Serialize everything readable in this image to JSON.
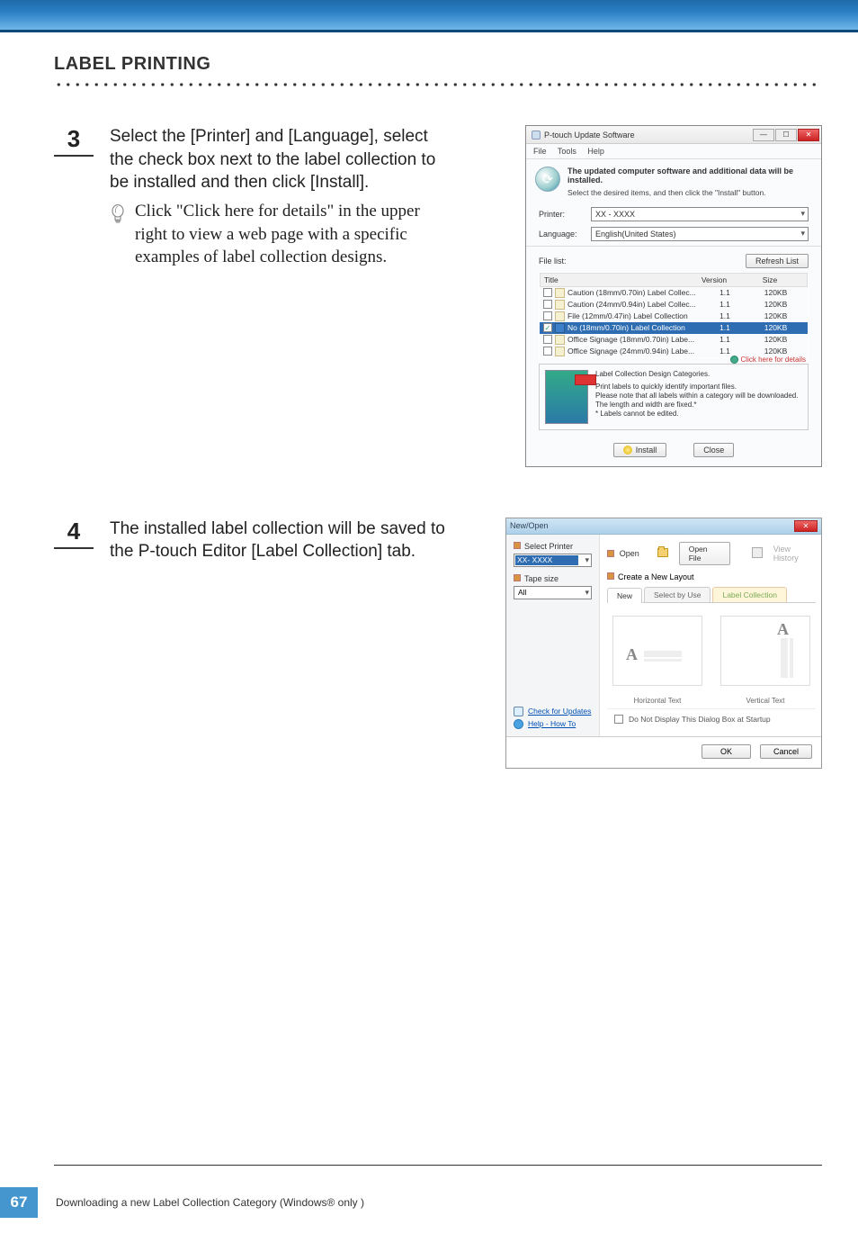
{
  "page": {
    "number": "67",
    "footer_text": "Downloading a new Label Collection Category (Windows® only )"
  },
  "header": {
    "title": "LABEL PRINTING"
  },
  "steps": {
    "s3": {
      "num": "3",
      "text": "Select the [Printer] and [Language], select the check box next to the label collection to be installed and then click [Install].",
      "tip": "Click \"Click here for details\" in the upper right to view a web page with a specific examples of label collection designs."
    },
    "s4": {
      "num": "4",
      "text": "The installed label collection will be saved to the P-touch Editor [Label Collection] tab."
    }
  },
  "dlg1": {
    "title": "P-touch Update Software",
    "menu": {
      "file": "File",
      "tools": "Tools",
      "help": "Help"
    },
    "info_bold": "The updated computer software and additional data will be installed.",
    "info_sub": "Select the desired items, and then click the \"Install\" button.",
    "printer_label": "Printer:",
    "printer_value": "XX - XXXX",
    "language_label": "Language:",
    "language_value": "English(United States)",
    "filelist_label": "File list:",
    "refresh_btn": "Refresh List",
    "columns": {
      "title": "Title",
      "version": "Version",
      "size": "Size"
    },
    "rows": [
      {
        "checked": false,
        "title": "Caution (18mm/0.70in) Label Collec...",
        "version": "1.1",
        "size": "120KB",
        "sel": false
      },
      {
        "checked": false,
        "title": "Caution (24mm/0.94in) Label Collec...",
        "version": "1.1",
        "size": "120KB",
        "sel": false
      },
      {
        "checked": false,
        "title": "File (12mm/0.47in)  Label Collection",
        "version": "1.1",
        "size": "120KB",
        "sel": false
      },
      {
        "checked": true,
        "title": "No (18mm/0.70in)  Label Collection",
        "version": "1.1",
        "size": "120KB",
        "sel": true
      },
      {
        "checked": false,
        "title": "Office Signage (18mm/0.70in) Labe...",
        "version": "1.1",
        "size": "120KB",
        "sel": false
      },
      {
        "checked": false,
        "title": "Office Signage (24mm/0.94in) Labe...",
        "version": "1.1",
        "size": "120KB",
        "sel": false
      }
    ],
    "details_link": "Click here for details",
    "detail_heading": "Label Collection Design Categories.",
    "detail_body1": "Print labels to quickly identify important files.",
    "detail_body2": "Please note that all labels within a category will be downloaded.",
    "detail_body3": "The length and width are fixed.*",
    "detail_body4": "* Labels cannot be edited.",
    "install_btn": "Install",
    "close_btn": "Close"
  },
  "dlg2": {
    "title": "New/Open",
    "select_printer": "Select Printer",
    "printer_value": "XX- XXXX",
    "tape_size": "Tape size",
    "tape_value": "All",
    "check_updates": "Check for Updates",
    "help_howto": "Help - How To",
    "open": "Open",
    "open_file_btn": "Open File",
    "view_history": "View History",
    "create_layout": "Create a New Layout",
    "tab_new": "New",
    "tab_select": "Select by Use",
    "tab_lc": "Label  Collection",
    "horiz": "Horizontal Text",
    "vert": "Vertical Text",
    "dont_display": "Do Not Display This Dialog Box at Startup",
    "ok": "OK",
    "cancel": "Cancel"
  },
  "colors": {
    "accent": "#4596ce",
    "select_row": "#2f6db2"
  }
}
